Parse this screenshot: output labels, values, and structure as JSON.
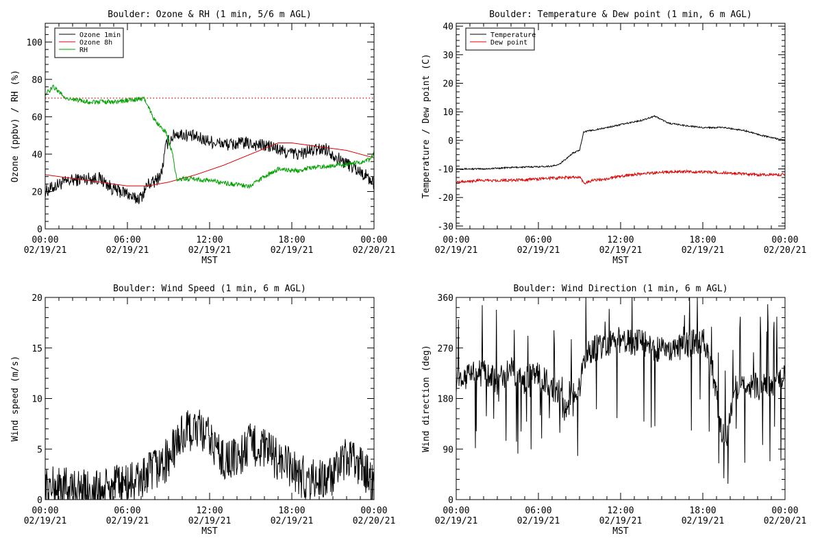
{
  "colors": {
    "ozone_1min": "#000000",
    "ozone_8h": "#e00000",
    "rh": "#00a000",
    "temperature": "#000000",
    "dew_point": "#e00000",
    "wind": "#000000"
  },
  "chart_data": [
    {
      "type": "line",
      "title": "Boulder: Ozone & RH (1 min, 5/6 m AGL)",
      "xlabel": "MST",
      "ylabel": "Ozone (ppbv) / RH (%)",
      "xlim": [
        "02/19/21 00:00",
        "02/20/21 00:00"
      ],
      "ylim": [
        0,
        110
      ],
      "xticks": [
        [
          "00:00",
          "02/19/21"
        ],
        [
          "06:00",
          "02/19/21"
        ],
        [
          "12:00",
          "02/19/21"
        ],
        [
          "18:00",
          "02/19/21"
        ],
        [
          "00:00",
          "02/20/21"
        ]
      ],
      "yticks": [
        "0",
        "20",
        "40",
        "60",
        "80",
        "100"
      ],
      "ytick_values": [
        0,
        20,
        40,
        60,
        80,
        100
      ],
      "legend": {
        "position": "top-left",
        "entries": [
          "Ozone 1min",
          "Ozone 8h",
          "RH"
        ]
      },
      "reference_line": {
        "y": 70,
        "style": "dotted",
        "color_key": "ozone_8h"
      },
      "series": [
        {
          "name": "Ozone 1min",
          "color_key": "ozone_1min",
          "noise": 3.5,
          "points": [
            [
              0,
              20
            ],
            [
              1,
              24
            ],
            [
              2,
              26
            ],
            [
              3,
              27
            ],
            [
              4,
              27
            ],
            [
              5,
              21
            ],
            [
              6,
              19
            ],
            [
              6.5,
              16
            ],
            [
              7,
              17
            ],
            [
              7.5,
              24
            ],
            [
              8,
              25
            ],
            [
              8.5,
              30
            ],
            [
              8.8,
              44
            ],
            [
              9,
              47
            ],
            [
              9.5,
              51
            ],
            [
              10.5,
              50
            ],
            [
              11.5,
              48
            ],
            [
              12.5,
              46
            ],
            [
              13.5,
              45
            ],
            [
              14.5,
              46
            ],
            [
              15.5,
              45
            ],
            [
              16.5,
              44
            ],
            [
              17.5,
              41
            ],
            [
              18.5,
              40
            ],
            [
              19.5,
              42
            ],
            [
              20.5,
              43
            ],
            [
              21.5,
              37
            ],
            [
              22.5,
              33
            ],
            [
              23.5,
              28
            ],
            [
              24,
              24
            ]
          ]
        },
        {
          "name": "Ozone 8h",
          "color_key": "ozone_8h",
          "noise": 0,
          "points": [
            [
              0,
              29
            ],
            [
              2,
              27
            ],
            [
              4,
              25
            ],
            [
              6,
              23
            ],
            [
              7.5,
              23
            ],
            [
              9,
              25
            ],
            [
              11,
              29
            ],
            [
              13,
              34
            ],
            [
              15,
              40
            ],
            [
              17,
              46
            ],
            [
              18,
              46
            ],
            [
              20,
              44
            ],
            [
              22,
              42
            ],
            [
              24,
              38
            ]
          ]
        },
        {
          "name": "RH",
          "color_key": "rh",
          "noise": 1.2,
          "points": [
            [
              0,
              72
            ],
            [
              0.6,
              76
            ],
            [
              1.5,
              70
            ],
            [
              3,
              68
            ],
            [
              5,
              68
            ],
            [
              6.5,
              69
            ],
            [
              7.2,
              70
            ],
            [
              8,
              58
            ],
            [
              8.8,
              52
            ],
            [
              9.3,
              40
            ],
            [
              9.6,
              26
            ],
            [
              10,
              27
            ],
            [
              12,
              26
            ],
            [
              13.5,
              24
            ],
            [
              15,
              23
            ],
            [
              16,
              28
            ],
            [
              17,
              32
            ],
            [
              18.5,
              31
            ],
            [
              19.5,
              33
            ],
            [
              21,
              34
            ],
            [
              22.5,
              35
            ],
            [
              23.7,
              37
            ],
            [
              24,
              40
            ]
          ]
        }
      ]
    },
    {
      "type": "line",
      "title": "Boulder: Temperature & Dew point (1 min, 6 m AGL)",
      "xlabel": "MST",
      "ylabel": "Temperature / Dew point (C)",
      "xlim": [
        "02/19/21 00:00",
        "02/20/21 00:00"
      ],
      "ylim": [
        -31,
        41
      ],
      "xticks": [
        [
          "00:00",
          "02/19/21"
        ],
        [
          "06:00",
          "02/19/21"
        ],
        [
          "12:00",
          "02/19/21"
        ],
        [
          "18:00",
          "02/19/21"
        ],
        [
          "00:00",
          "02/20/21"
        ]
      ],
      "yticks": [
        "-30",
        "-20",
        "-10",
        "0",
        "10",
        "20",
        "30",
        "40"
      ],
      "ytick_values": [
        -30,
        -20,
        -10,
        0,
        10,
        20,
        30,
        40
      ],
      "legend": {
        "position": "top-left",
        "entries": [
          "Temperature",
          "Dew point"
        ]
      },
      "series": [
        {
          "name": "Temperature",
          "color_key": "temperature",
          "noise": 0.25,
          "points": [
            [
              0,
              -10
            ],
            [
              2,
              -10
            ],
            [
              4,
              -9.5
            ],
            [
              6,
              -9.2
            ],
            [
              7,
              -9
            ],
            [
              7.5,
              -8.5
            ],
            [
              8.5,
              -4.5
            ],
            [
              9,
              -3.5
            ],
            [
              9.3,
              3
            ],
            [
              10.5,
              4
            ],
            [
              12,
              5.5
            ],
            [
              13.5,
              7
            ],
            [
              14.5,
              8.5
            ],
            [
              15.5,
              6
            ],
            [
              17,
              5
            ],
            [
              18,
              4.5
            ],
            [
              19.5,
              4.5
            ],
            [
              21,
              3.5
            ],
            [
              22.5,
              1.5
            ],
            [
              23.5,
              0.5
            ],
            [
              24,
              0
            ]
          ]
        },
        {
          "name": "Dew point",
          "color_key": "dew_point",
          "noise": 0.5,
          "points": [
            [
              0,
              -14.5
            ],
            [
              2,
              -14
            ],
            [
              4,
              -14
            ],
            [
              6,
              -13.5
            ],
            [
              8,
              -13
            ],
            [
              9,
              -13
            ],
            [
              9.4,
              -15
            ],
            [
              10,
              -14
            ],
            [
              11,
              -13.5
            ],
            [
              12,
              -12.5
            ],
            [
              14,
              -11.5
            ],
            [
              16,
              -11
            ],
            [
              18,
              -11
            ],
            [
              20,
              -11.5
            ],
            [
              22,
              -12
            ],
            [
              24,
              -12
            ]
          ]
        }
      ]
    },
    {
      "type": "line",
      "title": "Boulder: Wind Speed (1 min, 6 m AGL)",
      "xlabel": "MST",
      "ylabel": "Wind speed (m/s)",
      "xlim": [
        "02/19/21 00:00",
        "02/20/21 00:00"
      ],
      "ylim": [
        0,
        20
      ],
      "xticks": [
        [
          "00:00",
          "02/19/21"
        ],
        [
          "06:00",
          "02/19/21"
        ],
        [
          "12:00",
          "02/19/21"
        ],
        [
          "18:00",
          "02/19/21"
        ],
        [
          "00:00",
          "02/20/21"
        ]
      ],
      "yticks": [
        "0",
        "5",
        "10",
        "15",
        "20"
      ],
      "ytick_values": [
        0,
        5,
        10,
        15,
        20
      ],
      "series": [
        {
          "name": "",
          "color_key": "wind",
          "noise": 2.2,
          "floor": 0,
          "points": [
            [
              0,
              1
            ],
            [
              1,
              1.2
            ],
            [
              2,
              1
            ],
            [
              3,
              0.8
            ],
            [
              4,
              0.8
            ],
            [
              5,
              1.2
            ],
            [
              6,
              1.5
            ],
            [
              7,
              2
            ],
            [
              8,
              3
            ],
            [
              9,
              4
            ],
            [
              10,
              6.5
            ],
            [
              11,
              7
            ],
            [
              12,
              6
            ],
            [
              13,
              4
            ],
            [
              14,
              4
            ],
            [
              15,
              5.5
            ],
            [
              16,
              5
            ],
            [
              17,
              4
            ],
            [
              18,
              3
            ],
            [
              19,
              2
            ],
            [
              20,
              2
            ],
            [
              21,
              2.2
            ],
            [
              22,
              4
            ],
            [
              23,
              3.5
            ],
            [
              24,
              1.5
            ]
          ]
        }
      ]
    },
    {
      "type": "line",
      "title": "Boulder: Wind Direction (1 min, 6 m AGL)",
      "xlabel": "MST",
      "ylabel": "Wind direction (deg)",
      "xlim": [
        "02/19/21 00:00",
        "02/20/21 00:00"
      ],
      "ylim": [
        0,
        360
      ],
      "xticks": [
        [
          "00:00",
          "02/19/21"
        ],
        [
          "06:00",
          "02/19/21"
        ],
        [
          "12:00",
          "02/19/21"
        ],
        [
          "18:00",
          "02/19/21"
        ],
        [
          "00:00",
          "02/20/21"
        ]
      ],
      "yticks": [
        "0",
        "90",
        "180",
        "270",
        "360"
      ],
      "ytick_values": [
        0,
        90,
        180,
        270,
        360
      ],
      "series": [
        {
          "name": "",
          "color_key": "wind",
          "noise": 70,
          "floor": 0,
          "ceil": 360,
          "points": [
            [
              0,
              215
            ],
            [
              1,
              220
            ],
            [
              2,
              225
            ],
            [
              3,
              210
            ],
            [
              4,
              230
            ],
            [
              5,
              215
            ],
            [
              6,
              225
            ],
            [
              7,
              200
            ],
            [
              8,
              160
            ],
            [
              9,
              210
            ],
            [
              9.5,
              265
            ],
            [
              11,
              275
            ],
            [
              12,
              285
            ],
            [
              13,
              280
            ],
            [
              14,
              275
            ],
            [
              15,
              265
            ],
            [
              16,
              270
            ],
            [
              17,
              275
            ],
            [
              18,
              285
            ],
            [
              18.8,
              230
            ],
            [
              19.3,
              120
            ],
            [
              19.8,
              110
            ],
            [
              20.3,
              200
            ],
            [
              21,
              210
            ],
            [
              22,
              200
            ],
            [
              23,
              200
            ],
            [
              24,
              220
            ]
          ]
        }
      ]
    }
  ]
}
